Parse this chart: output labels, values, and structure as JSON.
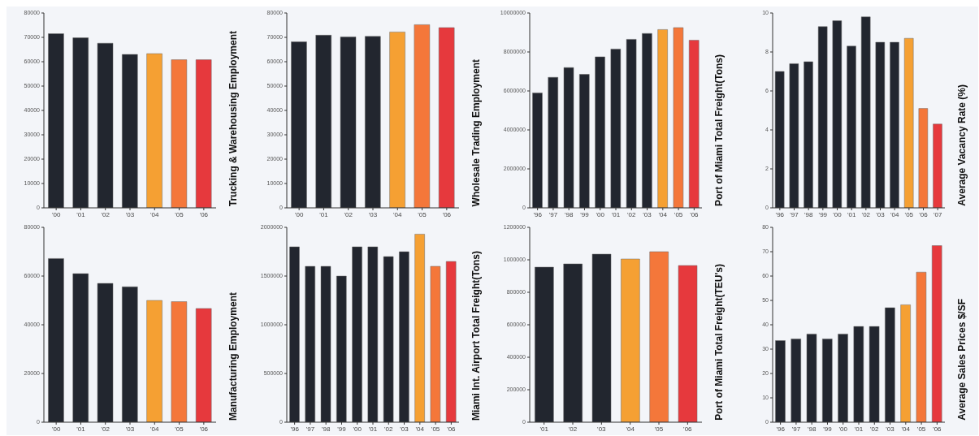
{
  "chart_data": [
    {
      "type": "bar",
      "ylabel": "Trucking & Warehousing Employment",
      "categories": [
        "'00",
        "'01",
        "'02",
        "'03",
        "'04",
        "'05",
        "'06"
      ],
      "values": [
        71500,
        69800,
        67600,
        63000,
        63300,
        60800,
        60800
      ],
      "colors": [
        "#22262f",
        "#22262f",
        "#22262f",
        "#22262f",
        "#f5a033",
        "#f4773a",
        "#e6393d"
      ],
      "ylim": [
        0,
        80000
      ],
      "yticks": [
        0,
        10000,
        20000,
        30000,
        40000,
        50000,
        60000,
        70000,
        80000
      ]
    },
    {
      "type": "bar",
      "ylabel": "Wholesale Trading Employment",
      "categories": [
        "'00",
        "'01",
        "'02",
        "'03",
        "'04",
        "'05",
        "'06"
      ],
      "values": [
        68200,
        70900,
        70200,
        70400,
        72200,
        75200,
        74000
      ],
      "colors": [
        "#22262f",
        "#22262f",
        "#22262f",
        "#22262f",
        "#f5a033",
        "#f4773a",
        "#e6393d"
      ],
      "ylim": [
        0,
        80000
      ],
      "yticks": [
        0,
        10000,
        20000,
        30000,
        40000,
        50000,
        60000,
        70000,
        80000
      ]
    },
    {
      "type": "bar",
      "ylabel": "Port of Miami Total Freight(Tons)",
      "categories": [
        "'96",
        "'97",
        "'98",
        "'99",
        "'00",
        "'01",
        "'02",
        "'03",
        "'04",
        "'05",
        "'06"
      ],
      "values": [
        5900000,
        6700000,
        7200000,
        6850000,
        7750000,
        8150000,
        8650000,
        8950000,
        9150000,
        9250000,
        8600000
      ],
      "colors": [
        "#22262f",
        "#22262f",
        "#22262f",
        "#22262f",
        "#22262f",
        "#22262f",
        "#22262f",
        "#22262f",
        "#f5a033",
        "#f4773a",
        "#e6393d"
      ],
      "ylim": [
        0,
        10000000
      ],
      "yticks": [
        0,
        2000000,
        4000000,
        6000000,
        8000000,
        10000000
      ]
    },
    {
      "type": "bar",
      "ylabel": "Average Vacancy Rate (%)",
      "categories": [
        "'96",
        "'97",
        "'98",
        "'99",
        "'00",
        "'01",
        "'02",
        "'03",
        "'04",
        "'05",
        "'06",
        "'07"
      ],
      "values": [
        7.0,
        7.4,
        7.5,
        9.3,
        9.6,
        8.3,
        9.8,
        8.5,
        8.5,
        8.7,
        5.1,
        4.3
      ],
      "colors": [
        "#22262f",
        "#22262f",
        "#22262f",
        "#22262f",
        "#22262f",
        "#22262f",
        "#22262f",
        "#22262f",
        "#22262f",
        "#f5a033",
        "#f4773a",
        "#e6393d"
      ],
      "ylim": [
        0,
        10
      ],
      "yticks": [
        0,
        2,
        4,
        6,
        8,
        10
      ]
    },
    {
      "type": "bar",
      "ylabel": "Manufacturing Employment",
      "categories": [
        "'00",
        "'01",
        "'02",
        "'03",
        "'04",
        "'05",
        "'06"
      ],
      "values": [
        67200,
        61000,
        57000,
        55600,
        50000,
        49500,
        46700
      ],
      "colors": [
        "#22262f",
        "#22262f",
        "#22262f",
        "#22262f",
        "#f5a033",
        "#f4773a",
        "#e6393d"
      ],
      "ylim": [
        0,
        80000
      ],
      "yticks": [
        0,
        20000,
        40000,
        60000,
        80000
      ]
    },
    {
      "type": "bar",
      "ylabel": "Miami Int. Airport Total Freight(Tons)",
      "categories": [
        "'96",
        "'97",
        "'98",
        "'99",
        "'00",
        "'01",
        "'02",
        "'03",
        "'04",
        "'05",
        "'06"
      ],
      "values": [
        1800000,
        1600000,
        1600000,
        1500000,
        1800000,
        1800000,
        1700000,
        1750000,
        1930000,
        1600000,
        1650000
      ],
      "colors": [
        "#22262f",
        "#22262f",
        "#22262f",
        "#22262f",
        "#22262f",
        "#22262f",
        "#22262f",
        "#22262f",
        "#f5a033",
        "#f4773a",
        "#e6393d"
      ],
      "ylim": [
        0,
        2000000
      ],
      "yticks": [
        0,
        500000,
        1000000,
        1500000,
        2000000
      ]
    },
    {
      "type": "bar",
      "ylabel": "Port of Miami Total Freight(TEU's)",
      "categories": [
        "'01",
        "'02",
        "'03",
        "'04",
        "'05",
        "'06"
      ],
      "values": [
        955000,
        975000,
        1035000,
        1005000,
        1050000,
        965000
      ],
      "colors": [
        "#22262f",
        "#22262f",
        "#22262f",
        "#f5a033",
        "#f4773a",
        "#e6393d"
      ],
      "ylim": [
        0,
        1200000
      ],
      "yticks": [
        0,
        200000,
        400000,
        600000,
        800000,
        1000000,
        1200000
      ]
    },
    {
      "type": "bar",
      "ylabel": "Average Sales Prices $/SF",
      "categories": [
        "'96",
        "'97",
        "'98",
        "'99",
        "'00",
        "'01",
        "'02",
        "'03",
        "'04",
        "'05",
        "'06"
      ],
      "values": [
        33.5,
        34.2,
        36.2,
        34.2,
        36.2,
        39.3,
        39.3,
        47.0,
        48.2,
        61.6,
        72.5
      ],
      "colors": [
        "#22262f",
        "#22262f",
        "#22262f",
        "#22262f",
        "#22262f",
        "#22262f",
        "#22262f",
        "#22262f",
        "#f5a033",
        "#f4773a",
        "#e6393d"
      ],
      "ylim": [
        0,
        80
      ],
      "yticks": [
        0,
        10,
        20,
        30,
        40,
        50,
        60,
        70,
        80
      ]
    }
  ]
}
